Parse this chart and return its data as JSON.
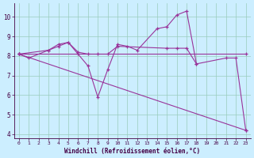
{
  "xlabel": "Windchill (Refroidissement éolien,°C)",
  "bg_color": "#cceeff",
  "grid_color": "#99ccbb",
  "line_color": "#993399",
  "xlim": [
    -0.5,
    23.5
  ],
  "ylim": [
    3.8,
    10.7
  ],
  "xticks": [
    0,
    1,
    2,
    3,
    4,
    5,
    6,
    7,
    8,
    9,
    10,
    11,
    12,
    13,
    14,
    15,
    16,
    17,
    18,
    19,
    20,
    21,
    22,
    23
  ],
  "yticks": [
    4,
    5,
    6,
    7,
    8,
    9,
    10
  ],
  "lines": [
    {
      "x": [
        0,
        1,
        3,
        4,
        5,
        6,
        7,
        8,
        9,
        10,
        11,
        12,
        14,
        15,
        16,
        17,
        18,
        21,
        22,
        23
      ],
      "y": [
        8.1,
        7.9,
        8.3,
        8.6,
        8.7,
        8.1,
        7.5,
        5.9,
        7.3,
        8.6,
        8.5,
        8.3,
        9.4,
        9.5,
        10.1,
        10.3,
        7.6,
        7.9,
        7.9,
        4.2
      ]
    },
    {
      "x": [
        0,
        3,
        4,
        5,
        6,
        7,
        8,
        9,
        10,
        15,
        16,
        17,
        18
      ],
      "y": [
        8.1,
        8.3,
        8.5,
        8.7,
        8.2,
        8.1,
        8.1,
        8.1,
        8.5,
        8.4,
        8.4,
        8.4,
        7.6
      ]
    },
    {
      "x": [
        0,
        23
      ],
      "y": [
        8.1,
        8.1
      ]
    },
    {
      "x": [
        0,
        23
      ],
      "y": [
        8.1,
        4.2
      ]
    }
  ]
}
